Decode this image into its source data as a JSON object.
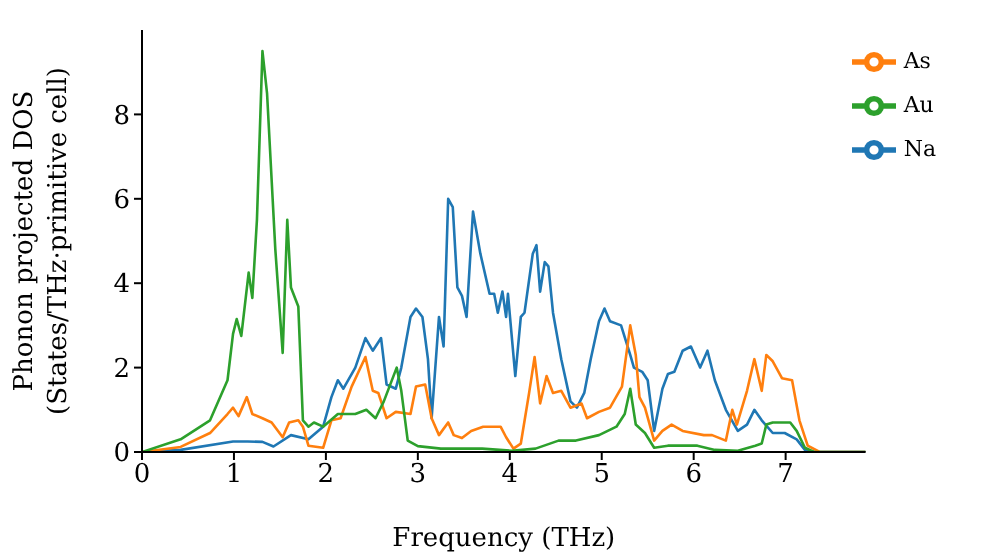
{
  "chart_data": {
    "type": "line",
    "xlabel": "Frequency (THz)",
    "ylabel": "Phonon projected DOS\n(States/THz·primitive cell)",
    "xlim": [
      0,
      7.87
    ],
    "ylim": [
      0,
      10
    ],
    "xticks": [
      0,
      1,
      2,
      3,
      4,
      5,
      6,
      7
    ],
    "yticks": [
      0,
      2,
      4,
      6,
      8
    ],
    "legend": "top right",
    "grid": false,
    "marker": "none",
    "line_style": "solid",
    "series": [
      {
        "name": "Na",
        "color": "#1f77b4",
        "x": [
          0,
          0.42,
          0.99,
          1.15,
          1.31,
          1.43,
          1.62,
          1.81,
          1.97,
          2.06,
          2.13,
          2.19,
          2.32,
          2.43,
          2.51,
          2.6,
          2.66,
          2.76,
          2.82,
          2.92,
          2.98,
          3.05,
          3.11,
          3.15,
          3.23,
          3.28,
          3.33,
          3.38,
          3.43,
          3.48,
          3.53,
          3.6,
          3.68,
          3.78,
          3.83,
          3.87,
          3.92,
          3.96,
          3.98,
          4.06,
          4.12,
          4.16,
          4.25,
          4.29,
          4.33,
          4.38,
          4.42,
          4.47,
          4.56,
          4.66,
          4.73,
          4.81,
          4.88,
          4.97,
          5.03,
          5.09,
          5.21,
          5.31,
          5.35,
          5.44,
          5.5,
          5.57,
          5.66,
          5.72,
          5.79,
          5.88,
          5.97,
          6.07,
          6.15,
          6.23,
          6.35,
          6.48,
          6.58,
          6.66,
          6.74,
          6.86,
          6.99,
          7.12,
          7.21,
          7.31,
          7.87
        ],
        "values": [
          0,
          0.05,
          0.25,
          0.25,
          0.24,
          0.13,
          0.4,
          0.3,
          0.6,
          1.3,
          1.7,
          1.5,
          2.0,
          2.7,
          2.4,
          2.7,
          1.6,
          1.5,
          2.0,
          3.2,
          3.4,
          3.2,
          2.2,
          0.8,
          3.2,
          2.5,
          6.0,
          5.8,
          3.9,
          3.7,
          3.2,
          5.7,
          4.7,
          3.75,
          3.75,
          3.3,
          3.8,
          3.2,
          3.75,
          1.8,
          3.2,
          3.3,
          4.7,
          4.9,
          3.8,
          4.5,
          4.4,
          3.3,
          2.2,
          1.2,
          1.05,
          1.4,
          2.2,
          3.1,
          3.4,
          3.1,
          3.0,
          2.3,
          2.0,
          1.9,
          1.7,
          0.5,
          1.5,
          1.85,
          1.9,
          2.4,
          2.5,
          2.0,
          2.4,
          1.7,
          1.0,
          0.5,
          0.65,
          1.0,
          0.75,
          0.45,
          0.45,
          0.3,
          0.05,
          0,
          0
        ]
      },
      {
        "name": "As",
        "color": "#ff7f0e",
        "x": [
          0,
          0.42,
          0.74,
          0.93,
          0.99,
          1.05,
          1.14,
          1.2,
          1.31,
          1.41,
          1.53,
          1.6,
          1.7,
          1.75,
          1.81,
          1.97,
          2.06,
          2.16,
          2.28,
          2.43,
          2.51,
          2.57,
          2.66,
          2.76,
          2.92,
          2.98,
          3.08,
          3.15,
          3.23,
          3.33,
          3.39,
          3.48,
          3.58,
          3.71,
          3.9,
          3.96,
          4.04,
          4.12,
          4.21,
          4.27,
          4.33,
          4.4,
          4.47,
          4.56,
          4.66,
          4.78,
          4.84,
          4.97,
          5.09,
          5.22,
          5.31,
          5.37,
          5.41,
          5.47,
          5.57,
          5.66,
          5.76,
          5.88,
          6.11,
          6.2,
          6.35,
          6.42,
          6.47,
          6.58,
          6.66,
          6.74,
          6.79,
          6.86,
          6.96,
          7.07,
          7.15,
          7.24,
          7.37,
          7.87
        ],
        "values": [
          0,
          0.12,
          0.45,
          0.9,
          1.05,
          0.85,
          1.3,
          0.9,
          0.8,
          0.7,
          0.35,
          0.7,
          0.75,
          0.6,
          0.15,
          0.1,
          0.75,
          0.8,
          1.55,
          2.25,
          1.45,
          1.4,
          0.8,
          0.95,
          0.9,
          1.55,
          1.6,
          0.8,
          0.4,
          0.7,
          0.4,
          0.33,
          0.5,
          0.6,
          0.6,
          0.35,
          0.08,
          0.2,
          1.4,
          2.25,
          1.15,
          1.8,
          1.4,
          1.45,
          1.05,
          1.15,
          0.8,
          0.95,
          1.05,
          1.55,
          3.0,
          2.3,
          1.3,
          1.05,
          0.27,
          0.5,
          0.65,
          0.5,
          0.4,
          0.4,
          0.27,
          1.0,
          0.65,
          1.45,
          2.2,
          1.45,
          2.3,
          2.15,
          1.75,
          1.7,
          0.75,
          0.15,
          0,
          0
        ]
      },
      {
        "name": "Au",
        "color": "#2ca02c",
        "x": [
          0,
          0.42,
          0.74,
          0.93,
          0.99,
          1.03,
          1.08,
          1.16,
          1.2,
          1.25,
          1.31,
          1.36,
          1.45,
          1.53,
          1.58,
          1.62,
          1.7,
          1.75,
          1.81,
          1.87,
          1.97,
          2.13,
          2.32,
          2.44,
          2.54,
          2.63,
          2.77,
          2.82,
          2.89,
          3.0,
          3.25,
          3.7,
          4.02,
          4.28,
          4.53,
          4.72,
          4.97,
          5.16,
          5.25,
          5.31,
          5.37,
          5.47,
          5.57,
          5.72,
          6.04,
          6.23,
          6.48,
          6.67,
          6.74,
          6.79,
          6.86,
          7.05,
          7.12,
          7.21,
          7.31,
          7.87
        ],
        "values": [
          0,
          0.3,
          0.75,
          1.7,
          2.8,
          3.15,
          2.75,
          4.25,
          3.65,
          5.5,
          9.5,
          8.5,
          4.8,
          2.35,
          5.5,
          3.9,
          3.45,
          0.75,
          0.6,
          0.7,
          0.6,
          0.9,
          0.9,
          1.0,
          0.8,
          1.2,
          2.0,
          1.45,
          0.27,
          0.14,
          0.08,
          0.08,
          0.03,
          0.08,
          0.27,
          0.27,
          0.4,
          0.6,
          0.9,
          1.5,
          0.65,
          0.45,
          0.1,
          0.15,
          0.15,
          0.05,
          0.03,
          0.15,
          0.2,
          0.65,
          0.7,
          0.7,
          0.5,
          0.1,
          0,
          0
        ]
      }
    ]
  }
}
